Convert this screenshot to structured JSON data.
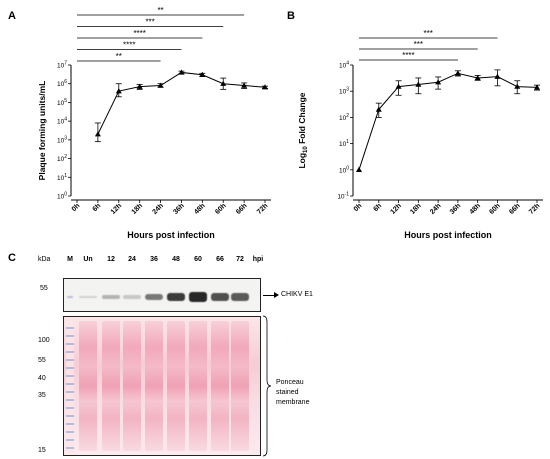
{
  "colors": {
    "line": "#000000",
    "ponceau": "#f2a0b4",
    "band": "#2a2a2a"
  },
  "chart_data": [
    {
      "panel": "A",
      "type": "line",
      "x": [
        "0h",
        "6h",
        "12h",
        "18h",
        "24h",
        "36h",
        "48h",
        "60h",
        "66h",
        "72h"
      ],
      "y_tick_labels": [
        "10^0",
        "10^1",
        "10^2",
        "10^3",
        "10^4",
        "10^5",
        "10^6",
        "10^7"
      ],
      "ylabel": "Plaque forming units/mL",
      "xlabel": "Hours post infection",
      "yscale": "log",
      "ylim": [
        1,
        10000000
      ],
      "marker": "triangle",
      "series": [
        {
          "x": [
            "6h",
            "12h",
            "18h",
            "24h",
            "36h",
            "48h",
            "60h",
            "66h",
            "72h"
          ],
          "values": [
            2000,
            400000,
            700000,
            800000,
            4000000,
            3000000,
            1000000,
            800000,
            650000
          ],
          "err_low": [
            800,
            200000,
            500000,
            650000,
            3400000,
            2500000,
            500000,
            550000,
            560000
          ],
          "err_high": [
            8000,
            1000000,
            900000,
            1000000,
            4700000,
            3600000,
            2000000,
            1100000,
            740000
          ]
        }
      ],
      "significance": [
        {
          "from": "0h",
          "to": "66h",
          "label": "**"
        },
        {
          "from": "0h",
          "to": "60h",
          "label": "***"
        },
        {
          "from": "0h",
          "to": "48h",
          "label": "****"
        },
        {
          "from": "0h",
          "to": "36h",
          "label": "****"
        },
        {
          "from": "0h",
          "to": "24h",
          "label": "**"
        }
      ]
    },
    {
      "panel": "B",
      "type": "line",
      "x": [
        "0h",
        "6h",
        "12h",
        "18h",
        "24h",
        "36h",
        "48h",
        "60h",
        "66h",
        "72h"
      ],
      "y_tick_labels": [
        "10^-1",
        "10^0",
        "10^1",
        "10^2",
        "10^3",
        "10^4"
      ],
      "ylabel": "Log10 Fold Change",
      "xlabel": "Hours post infection",
      "yscale": "log",
      "ylim": [
        0.1,
        10000
      ],
      "marker": "triangle",
      "series": [
        {
          "x": [
            "0h",
            "6h",
            "12h",
            "18h",
            "24h",
            "36h",
            "48h",
            "60h",
            "66h",
            "72h"
          ],
          "values": [
            1,
            200,
            1500,
            1800,
            2200,
            4800,
            3200,
            3600,
            1500,
            1400
          ],
          "err_low": [
            1,
            100,
            700,
            800,
            1200,
            3800,
            2600,
            1600,
            800,
            1100
          ],
          "err_high": [
            1,
            350,
            2500,
            3200,
            3500,
            6000,
            4000,
            6500,
            2500,
            1700
          ]
        }
      ],
      "significance": [
        {
          "from": "0h",
          "to": "60h",
          "label": "***"
        },
        {
          "from": "0h",
          "to": "48h",
          "label": "***"
        },
        {
          "from": "0h",
          "to": "36h",
          "label": "****"
        }
      ]
    }
  ],
  "blot": {
    "panel": "C",
    "kda_header": "kDa",
    "lane_labels": [
      "M",
      "Un",
      "12",
      "24",
      "36",
      "48",
      "60",
      "66",
      "72",
      "hpi"
    ],
    "top_marker": "55",
    "bottom_markers": [
      "100",
      "55",
      "40",
      "35",
      "15"
    ],
    "band_label": "CHIKV E1",
    "ponceau_label": "Ponceau\nstained\nmembrane",
    "band_intensity": [
      0.0,
      0.1,
      0.25,
      0.15,
      0.55,
      0.85,
      0.95,
      0.75,
      0.7
    ]
  }
}
